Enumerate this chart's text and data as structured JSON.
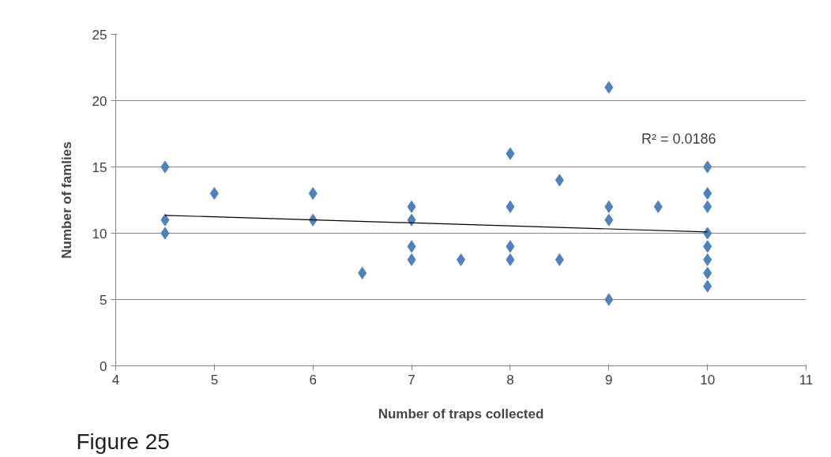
{
  "chart_data": {
    "type": "scatter",
    "xlabel": "Number of traps collected",
    "ylabel": "Number of famlies",
    "xlim": [
      4,
      11
    ],
    "xticks": [
      4,
      5,
      6,
      7,
      8,
      9,
      10,
      11
    ],
    "ylim": [
      0,
      25
    ],
    "yticks": [
      0,
      5,
      10,
      15,
      20,
      25
    ],
    "grid": "y",
    "marker": "diamond",
    "series": [
      {
        "color": "#4f81bd",
        "x": [
          4.5,
          4.5,
          4.5,
          5,
          6,
          6,
          6.5,
          7,
          7,
          7,
          7,
          7.5,
          8,
          8,
          8,
          8,
          8.5,
          8.5,
          9,
          9,
          9,
          9,
          9.5,
          10,
          10,
          10,
          10,
          10,
          10,
          10,
          10
        ],
        "values": [
          15,
          11,
          10,
          13,
          13,
          11,
          7,
          12,
          11,
          9,
          8,
          8,
          16,
          12,
          9,
          8,
          14,
          8,
          21,
          12,
          11,
          5,
          12,
          15,
          13,
          12,
          10,
          9,
          8,
          7,
          6
        ]
      },
      {
        "type": "line",
        "color": "#000000",
        "marker": "none",
        "x": [
          4.5,
          10
        ],
        "values": [
          11.35,
          10.1
        ]
      }
    ],
    "annotations": [
      "R² = 0.0186",
      "Figure 25"
    ]
  }
}
